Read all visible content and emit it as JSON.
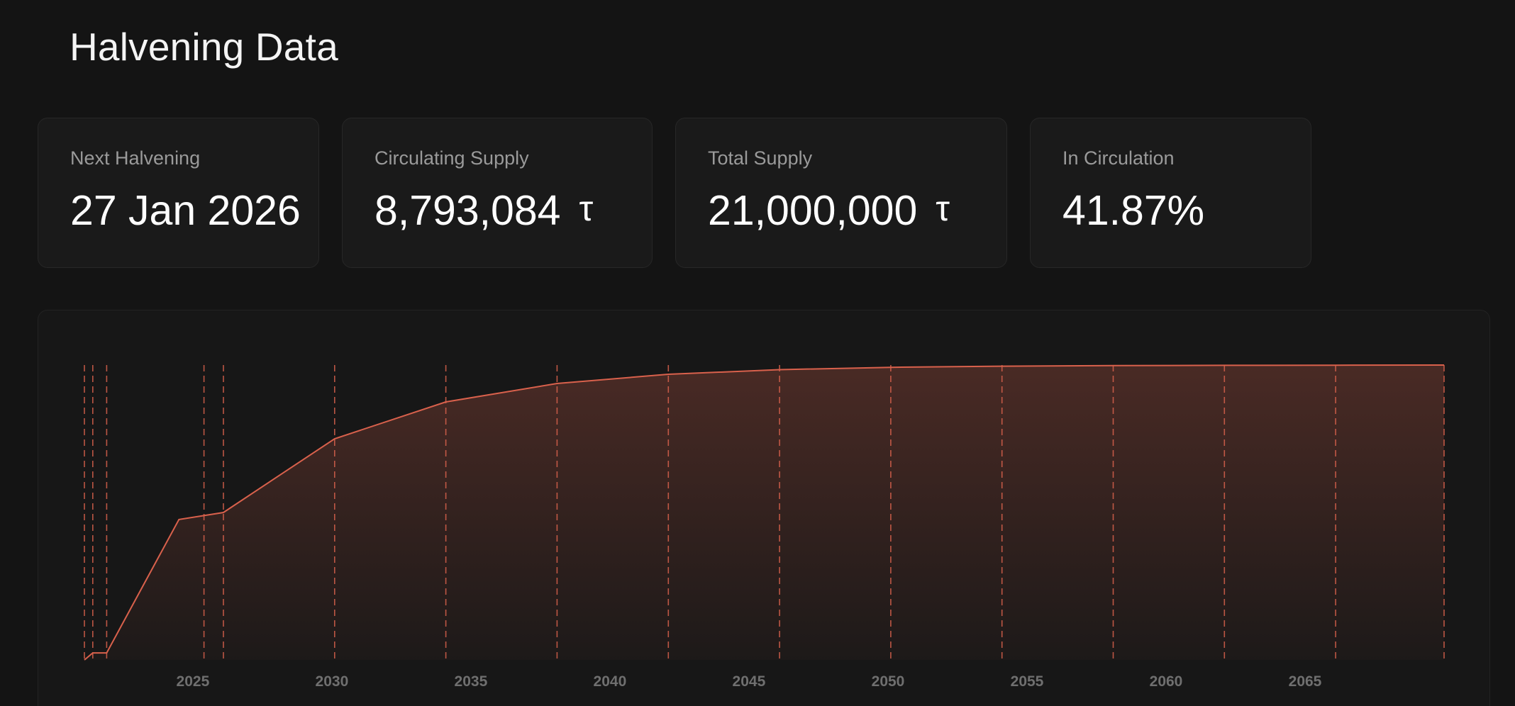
{
  "header": {
    "title": "Halvening Data"
  },
  "stats": {
    "next_halvening": {
      "label": "Next Halvening",
      "value": "27 Jan 2026"
    },
    "circulating_supply": {
      "label": "Circulating Supply",
      "value": "8,793,084",
      "unit": "τ"
    },
    "total_supply": {
      "label": "Total Supply",
      "value": "21,000,000",
      "unit": "τ"
    },
    "in_circulation": {
      "label": "In Circulation",
      "value": "41.87%"
    }
  },
  "colors": {
    "accent": "#d9614c",
    "background": "#141414",
    "card": "#1a1a1a"
  },
  "chart_data": {
    "type": "area",
    "title": "",
    "xlabel": "",
    "ylabel": "",
    "x_ticks": [
      "2025",
      "2030",
      "2035",
      "2040",
      "2045",
      "2050",
      "2055",
      "2060",
      "2065"
    ],
    "xlim": [
      2021.1,
      2070.0
    ],
    "ylim": [
      0,
      21000000
    ],
    "grid": false,
    "legend": "none",
    "series": [
      {
        "x": [
          2021.1,
          2021.4,
          2021.9,
          2023.2,
          2024.5,
          2026.1,
          2030.1,
          2034.1,
          2038.1,
          2042.1,
          2046.1,
          2050.1,
          2054.1,
          2058.1,
          2062.1,
          2066.1,
          2070.0
        ],
        "values": [
          0,
          500000,
          500000,
          5250000,
          10000000,
          10500000,
          15750000,
          18375000,
          19687500,
          20343750,
          20671875,
          20835938,
          20917969,
          20958984,
          20979492,
          20989746,
          21000000
        ]
      }
    ],
    "halvening_markers": [
      2021.1,
      2021.4,
      2021.9,
      2025.4,
      2026.1,
      2030.1,
      2034.1,
      2038.1,
      2042.1,
      2046.1,
      2050.1,
      2054.1,
      2058.1,
      2062.1,
      2066.1,
      2070.0
    ]
  }
}
